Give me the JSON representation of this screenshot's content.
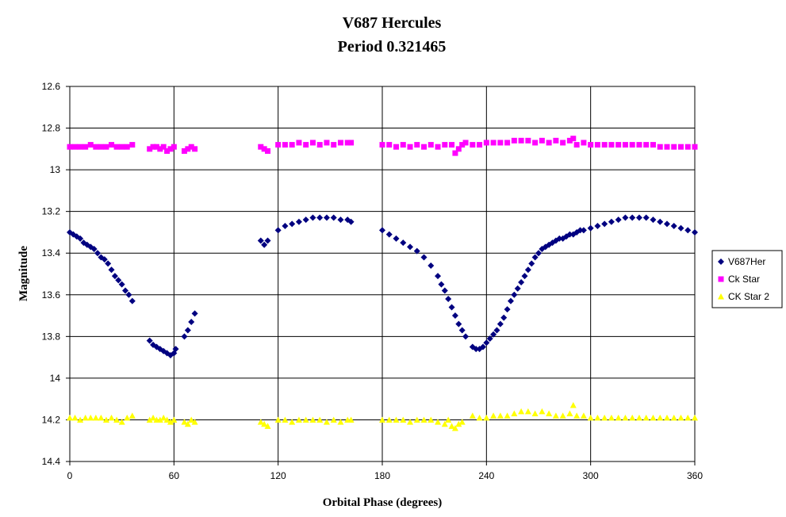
{
  "chart_data": {
    "type": "scatter",
    "title": "V687 Hercules",
    "subtitle": "Period 0.321465",
    "xlabel": "Orbital Phase (degrees)",
    "ylabel": "Magnitude",
    "xlim": [
      0,
      360
    ],
    "ylim": [
      12.6,
      14.4
    ],
    "y_inverted": true,
    "x_ticks": [
      "0",
      "60",
      "120",
      "180",
      "240",
      "300",
      "360"
    ],
    "y_ticks": [
      "12.6",
      "12.8",
      "13",
      "13.2",
      "13.4",
      "13.6",
      "13.8",
      "14",
      "14.2",
      "14.4"
    ],
    "grid": true,
    "legend_position": "right",
    "colors": {
      "plot_border": "#000000",
      "grid": "#000000",
      "background": "#ffffff"
    },
    "series": [
      {
        "name": "V687Her",
        "marker": "diamond",
        "color": "#000080",
        "points": [
          [
            0,
            13.3
          ],
          [
            2,
            13.31
          ],
          [
            4,
            13.32
          ],
          [
            6,
            13.33
          ],
          [
            8,
            13.35
          ],
          [
            10,
            13.36
          ],
          [
            12,
            13.37
          ],
          [
            14,
            13.38
          ],
          [
            16,
            13.4
          ],
          [
            18,
            13.42
          ],
          [
            20,
            13.43
          ],
          [
            22,
            13.45
          ],
          [
            24,
            13.48
          ],
          [
            26,
            13.51
          ],
          [
            28,
            13.53
          ],
          [
            30,
            13.55
          ],
          [
            32,
            13.58
          ],
          [
            34,
            13.6
          ],
          [
            36,
            13.63
          ],
          [
            46,
            13.82
          ],
          [
            48,
            13.84
          ],
          [
            50,
            13.85
          ],
          [
            52,
            13.86
          ],
          [
            54,
            13.87
          ],
          [
            56,
            13.88
          ],
          [
            58,
            13.89
          ],
          [
            60,
            13.88
          ],
          [
            61,
            13.86
          ],
          [
            66,
            13.8
          ],
          [
            68,
            13.77
          ],
          [
            70,
            13.73
          ],
          [
            72,
            13.69
          ],
          [
            110,
            13.34
          ],
          [
            112,
            13.36
          ],
          [
            114,
            13.34
          ],
          [
            120,
            13.29
          ],
          [
            124,
            13.27
          ],
          [
            128,
            13.26
          ],
          [
            132,
            13.25
          ],
          [
            136,
            13.24
          ],
          [
            140,
            13.23
          ],
          [
            144,
            13.23
          ],
          [
            148,
            13.23
          ],
          [
            152,
            13.23
          ],
          [
            156,
            13.24
          ],
          [
            160,
            13.24
          ],
          [
            162,
            13.25
          ],
          [
            180,
            13.29
          ],
          [
            184,
            13.31
          ],
          [
            188,
            13.33
          ],
          [
            192,
            13.35
          ],
          [
            196,
            13.37
          ],
          [
            200,
            13.39
          ],
          [
            204,
            13.42
          ],
          [
            208,
            13.46
          ],
          [
            212,
            13.51
          ],
          [
            214,
            13.55
          ],
          [
            216,
            13.58
          ],
          [
            218,
            13.62
          ],
          [
            220,
            13.66
          ],
          [
            222,
            13.7
          ],
          [
            224,
            13.74
          ],
          [
            226,
            13.77
          ],
          [
            228,
            13.8
          ],
          [
            232,
            13.85
          ],
          [
            234,
            13.86
          ],
          [
            236,
            13.86
          ],
          [
            238,
            13.85
          ],
          [
            240,
            13.83
          ],
          [
            242,
            13.81
          ],
          [
            244,
            13.79
          ],
          [
            246,
            13.77
          ],
          [
            248,
            13.74
          ],
          [
            250,
            13.71
          ],
          [
            252,
            13.67
          ],
          [
            254,
            13.63
          ],
          [
            256,
            13.6
          ],
          [
            258,
            13.57
          ],
          [
            260,
            13.54
          ],
          [
            262,
            13.51
          ],
          [
            264,
            13.48
          ],
          [
            266,
            13.45
          ],
          [
            268,
            13.42
          ],
          [
            270,
            13.4
          ],
          [
            272,
            13.38
          ],
          [
            274,
            13.37
          ],
          [
            276,
            13.36
          ],
          [
            278,
            13.35
          ],
          [
            280,
            13.34
          ],
          [
            282,
            13.33
          ],
          [
            284,
            13.33
          ],
          [
            286,
            13.32
          ],
          [
            288,
            13.31
          ],
          [
            290,
            13.31
          ],
          [
            292,
            13.3
          ],
          [
            294,
            13.29
          ],
          [
            296,
            13.29
          ],
          [
            300,
            13.28
          ],
          [
            304,
            13.27
          ],
          [
            308,
            13.26
          ],
          [
            312,
            13.25
          ],
          [
            316,
            13.24
          ],
          [
            320,
            13.23
          ],
          [
            324,
            13.23
          ],
          [
            328,
            13.23
          ],
          [
            332,
            13.23
          ],
          [
            336,
            13.24
          ],
          [
            340,
            13.25
          ],
          [
            344,
            13.26
          ],
          [
            348,
            13.27
          ],
          [
            352,
            13.28
          ],
          [
            356,
            13.29
          ],
          [
            360,
            13.3
          ]
        ]
      },
      {
        "name": "Ck Star",
        "marker": "square",
        "color": "#ff00ff",
        "points": [
          [
            0,
            12.89
          ],
          [
            3,
            12.89
          ],
          [
            6,
            12.89
          ],
          [
            9,
            12.89
          ],
          [
            12,
            12.88
          ],
          [
            15,
            12.89
          ],
          [
            18,
            12.89
          ],
          [
            21,
            12.89
          ],
          [
            24,
            12.88
          ],
          [
            27,
            12.89
          ],
          [
            30,
            12.89
          ],
          [
            33,
            12.89
          ],
          [
            36,
            12.88
          ],
          [
            46,
            12.9
          ],
          [
            48,
            12.89
          ],
          [
            50,
            12.89
          ],
          [
            52,
            12.9
          ],
          [
            54,
            12.89
          ],
          [
            56,
            12.91
          ],
          [
            58,
            12.9
          ],
          [
            60,
            12.89
          ],
          [
            66,
            12.91
          ],
          [
            68,
            12.9
          ],
          [
            70,
            12.89
          ],
          [
            72,
            12.9
          ],
          [
            110,
            12.89
          ],
          [
            112,
            12.9
          ],
          [
            114,
            12.91
          ],
          [
            120,
            12.88
          ],
          [
            124,
            12.88
          ],
          [
            128,
            12.88
          ],
          [
            132,
            12.87
          ],
          [
            136,
            12.88
          ],
          [
            140,
            12.87
          ],
          [
            144,
            12.88
          ],
          [
            148,
            12.87
          ],
          [
            152,
            12.88
          ],
          [
            156,
            12.87
          ],
          [
            160,
            12.87
          ],
          [
            162,
            12.87
          ],
          [
            180,
            12.88
          ],
          [
            184,
            12.88
          ],
          [
            188,
            12.89
          ],
          [
            192,
            12.88
          ],
          [
            196,
            12.89
          ],
          [
            200,
            12.88
          ],
          [
            204,
            12.89
          ],
          [
            208,
            12.88
          ],
          [
            212,
            12.89
          ],
          [
            216,
            12.88
          ],
          [
            220,
            12.88
          ],
          [
            222,
            12.92
          ],
          [
            224,
            12.9
          ],
          [
            226,
            12.88
          ],
          [
            228,
            12.87
          ],
          [
            232,
            12.88
          ],
          [
            236,
            12.88
          ],
          [
            240,
            12.87
          ],
          [
            244,
            12.87
          ],
          [
            248,
            12.87
          ],
          [
            252,
            12.87
          ],
          [
            256,
            12.86
          ],
          [
            260,
            12.86
          ],
          [
            264,
            12.86
          ],
          [
            268,
            12.87
          ],
          [
            272,
            12.86
          ],
          [
            276,
            12.87
          ],
          [
            280,
            12.86
          ],
          [
            284,
            12.87
          ],
          [
            288,
            12.86
          ],
          [
            290,
            12.85
          ],
          [
            292,
            12.88
          ],
          [
            296,
            12.87
          ],
          [
            300,
            12.88
          ],
          [
            304,
            12.88
          ],
          [
            308,
            12.88
          ],
          [
            312,
            12.88
          ],
          [
            316,
            12.88
          ],
          [
            320,
            12.88
          ],
          [
            324,
            12.88
          ],
          [
            328,
            12.88
          ],
          [
            332,
            12.88
          ],
          [
            336,
            12.88
          ],
          [
            340,
            12.89
          ],
          [
            344,
            12.89
          ],
          [
            348,
            12.89
          ],
          [
            352,
            12.89
          ],
          [
            356,
            12.89
          ],
          [
            360,
            12.89
          ]
        ]
      },
      {
        "name": "CK Star 2",
        "marker": "triangle",
        "color": "#ffff00",
        "points": [
          [
            0,
            14.19
          ],
          [
            3,
            14.19
          ],
          [
            6,
            14.2
          ],
          [
            9,
            14.19
          ],
          [
            12,
            14.19
          ],
          [
            15,
            14.19
          ],
          [
            18,
            14.19
          ],
          [
            21,
            14.2
          ],
          [
            24,
            14.19
          ],
          [
            27,
            14.2
          ],
          [
            30,
            14.21
          ],
          [
            33,
            14.19
          ],
          [
            36,
            14.18
          ],
          [
            46,
            14.2
          ],
          [
            48,
            14.19
          ],
          [
            50,
            14.2
          ],
          [
            52,
            14.2
          ],
          [
            54,
            14.19
          ],
          [
            56,
            14.2
          ],
          [
            58,
            14.21
          ],
          [
            60,
            14.2
          ],
          [
            66,
            14.21
          ],
          [
            68,
            14.22
          ],
          [
            70,
            14.2
          ],
          [
            72,
            14.21
          ],
          [
            110,
            14.21
          ],
          [
            112,
            14.22
          ],
          [
            114,
            14.23
          ],
          [
            120,
            14.2
          ],
          [
            124,
            14.2
          ],
          [
            128,
            14.21
          ],
          [
            132,
            14.2
          ],
          [
            136,
            14.2
          ],
          [
            140,
            14.2
          ],
          [
            144,
            14.2
          ],
          [
            148,
            14.21
          ],
          [
            152,
            14.2
          ],
          [
            156,
            14.21
          ],
          [
            160,
            14.2
          ],
          [
            162,
            14.2
          ],
          [
            180,
            14.2
          ],
          [
            184,
            14.2
          ],
          [
            188,
            14.2
          ],
          [
            192,
            14.2
          ],
          [
            196,
            14.21
          ],
          [
            200,
            14.2
          ],
          [
            204,
            14.2
          ],
          [
            208,
            14.2
          ],
          [
            212,
            14.21
          ],
          [
            216,
            14.22
          ],
          [
            218,
            14.2
          ],
          [
            220,
            14.23
          ],
          [
            222,
            14.24
          ],
          [
            224,
            14.22
          ],
          [
            226,
            14.21
          ],
          [
            232,
            14.18
          ],
          [
            236,
            14.19
          ],
          [
            240,
            14.19
          ],
          [
            244,
            14.18
          ],
          [
            248,
            14.18
          ],
          [
            252,
            14.18
          ],
          [
            256,
            14.17
          ],
          [
            260,
            14.16
          ],
          [
            264,
            14.16
          ],
          [
            268,
            14.17
          ],
          [
            272,
            14.16
          ],
          [
            276,
            14.17
          ],
          [
            280,
            14.18
          ],
          [
            284,
            14.18
          ],
          [
            288,
            14.17
          ],
          [
            290,
            14.13
          ],
          [
            292,
            14.18
          ],
          [
            296,
            14.18
          ],
          [
            300,
            14.19
          ],
          [
            304,
            14.19
          ],
          [
            308,
            14.19
          ],
          [
            312,
            14.19
          ],
          [
            316,
            14.19
          ],
          [
            320,
            14.19
          ],
          [
            324,
            14.19
          ],
          [
            328,
            14.19
          ],
          [
            332,
            14.19
          ],
          [
            336,
            14.19
          ],
          [
            340,
            14.19
          ],
          [
            344,
            14.19
          ],
          [
            348,
            14.19
          ],
          [
            352,
            14.19
          ],
          [
            356,
            14.19
          ],
          [
            360,
            14.19
          ]
        ]
      }
    ]
  }
}
